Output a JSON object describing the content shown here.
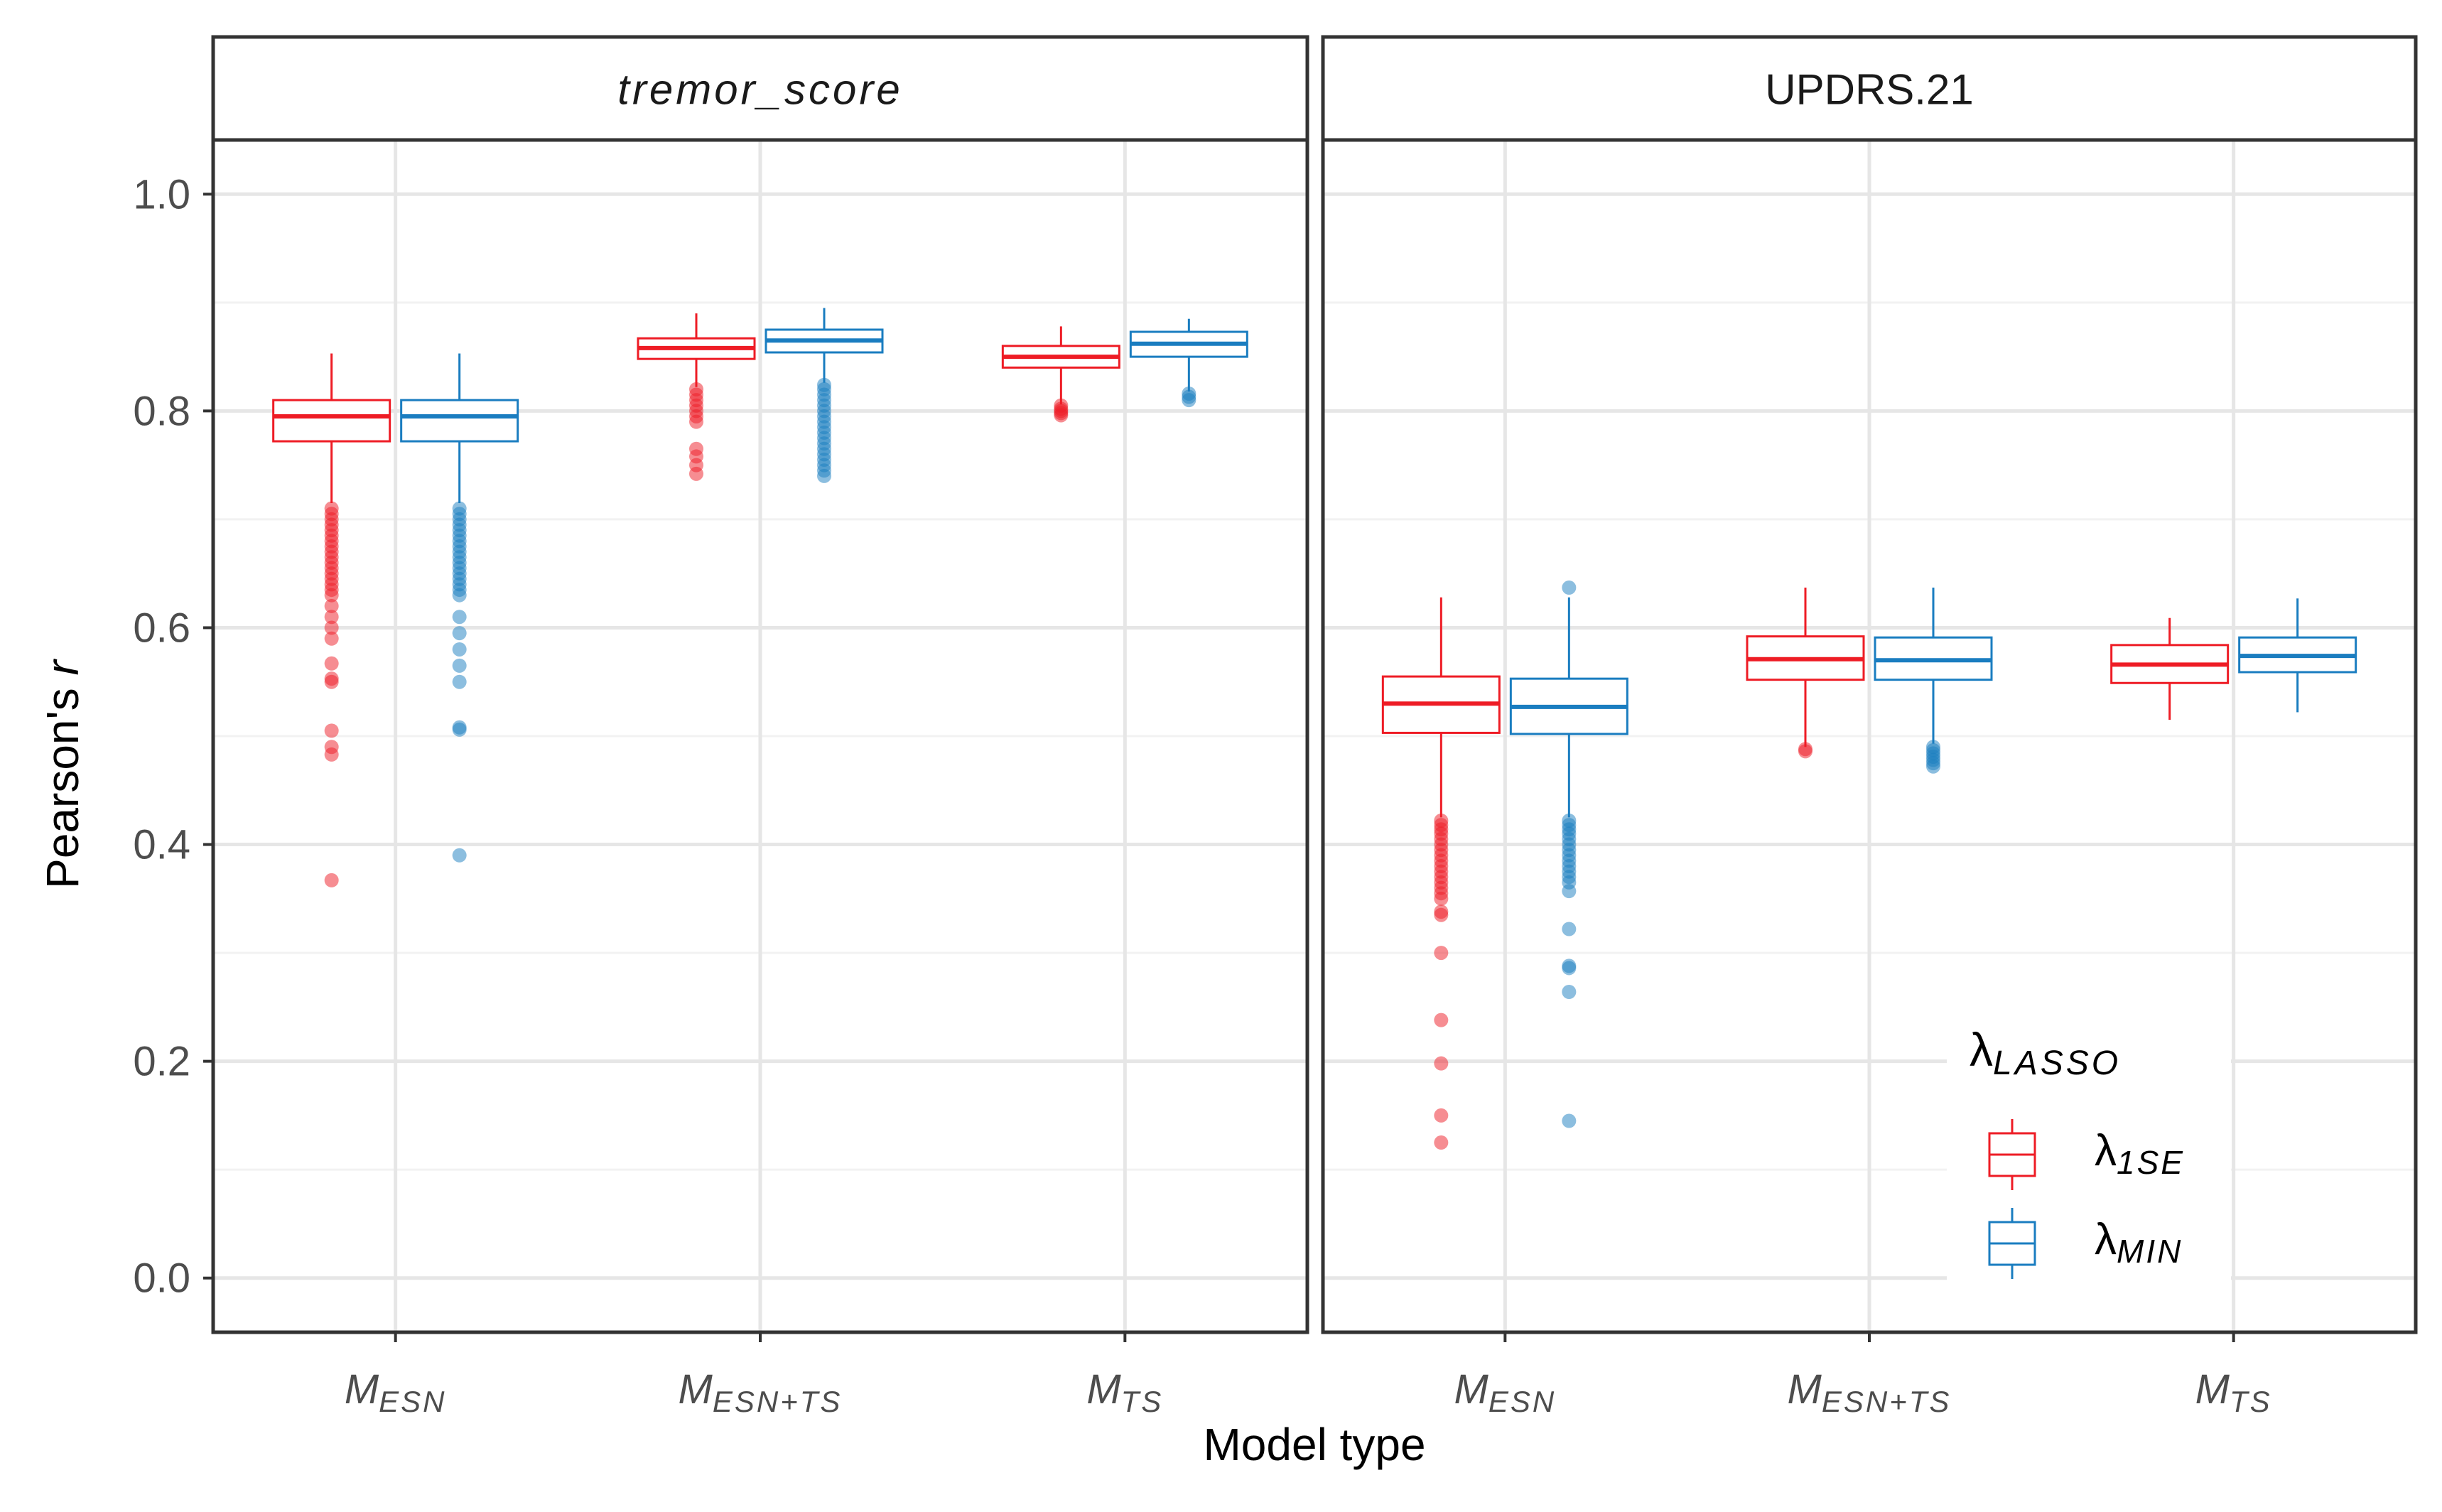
{
  "chart_data": {
    "type": "boxplot",
    "ylabel_main": "Pearson's ",
    "ylabel_italic": "r",
    "xlabel": "Model type",
    "ylim": [
      -0.05,
      1.05
    ],
    "yticks": [
      {
        "value": 0.0,
        "label": "0.0"
      },
      {
        "value": 0.2,
        "label": "0.2"
      },
      {
        "value": 0.4,
        "label": "0.4"
      },
      {
        "value": 0.6,
        "label": "0.6"
      },
      {
        "value": 0.8,
        "label": "0.8"
      },
      {
        "value": 1.0,
        "label": "1.0"
      }
    ],
    "minor_grid": [
      0.1,
      0.3,
      0.5,
      0.7,
      0.9
    ],
    "categories": [
      {
        "base": "M",
        "sub": "ESN"
      },
      {
        "base": "M",
        "sub": "ESN+TS"
      },
      {
        "base": "M",
        "sub": "TS"
      }
    ],
    "colors": {
      "lambda_1se": "#ee1c25",
      "lambda_min": "#1a7dc0"
    },
    "legend": {
      "title_base": "λ",
      "title_sub": "LASSO",
      "items": [
        {
          "key": "lambda_1se",
          "base": "λ",
          "sub": "1SE"
        },
        {
          "key": "lambda_min",
          "base": "λ",
          "sub": "MIN"
        }
      ]
    },
    "panels": [
      {
        "title": "tremor_score",
        "title_italic": true,
        "boxes": [
          {
            "category": 0,
            "series": "lambda_1se",
            "q1": 0.772,
            "median": 0.795,
            "q3": 0.81,
            "whisker_low": 0.715,
            "whisker_high": 0.853,
            "outliers": [
              0.71,
              0.705,
              0.7,
              0.695,
              0.69,
              0.685,
              0.68,
              0.675,
              0.67,
              0.665,
              0.66,
              0.655,
              0.65,
              0.645,
              0.64,
              0.635,
              0.63,
              0.62,
              0.61,
              0.6,
              0.59,
              0.567,
              0.553,
              0.55,
              0.505,
              0.49,
              0.483,
              0.367
            ]
          },
          {
            "category": 0,
            "series": "lambda_min",
            "q1": 0.772,
            "median": 0.795,
            "q3": 0.81,
            "whisker_low": 0.715,
            "whisker_high": 0.853,
            "outliers": [
              0.71,
              0.705,
              0.7,
              0.695,
              0.69,
              0.685,
              0.68,
              0.675,
              0.67,
              0.665,
              0.66,
              0.655,
              0.65,
              0.645,
              0.64,
              0.635,
              0.63,
              0.61,
              0.595,
              0.58,
              0.565,
              0.55,
              0.508,
              0.506,
              0.39
            ]
          },
          {
            "category": 1,
            "series": "lambda_1se",
            "q1": 0.848,
            "median": 0.858,
            "q3": 0.867,
            "whisker_low": 0.822,
            "whisker_high": 0.89,
            "outliers": [
              0.82,
              0.815,
              0.81,
              0.805,
              0.8,
              0.795,
              0.79,
              0.765,
              0.758,
              0.75,
              0.742
            ]
          },
          {
            "category": 1,
            "series": "lambda_min",
            "q1": 0.854,
            "median": 0.865,
            "q3": 0.875,
            "whisker_low": 0.826,
            "whisker_high": 0.895,
            "outliers": [
              0.824,
              0.82,
              0.815,
              0.81,
              0.805,
              0.8,
              0.795,
              0.79,
              0.785,
              0.78,
              0.775,
              0.77,
              0.765,
              0.76,
              0.755,
              0.75,
              0.745,
              0.74
            ]
          },
          {
            "category": 2,
            "series": "lambda_1se",
            "q1": 0.84,
            "median": 0.85,
            "q3": 0.86,
            "whisker_low": 0.806,
            "whisker_high": 0.878,
            "outliers": [
              0.805,
              0.802,
              0.8,
              0.798,
              0.796
            ]
          },
          {
            "category": 2,
            "series": "lambda_min",
            "q1": 0.85,
            "median": 0.862,
            "q3": 0.873,
            "whisker_low": 0.818,
            "whisker_high": 0.885,
            "outliers": [
              0.816,
              0.813,
              0.81
            ]
          }
        ]
      },
      {
        "title": "UPDRS.21",
        "title_italic": false,
        "boxes": [
          {
            "category": 0,
            "series": "lambda_1se",
            "q1": 0.503,
            "median": 0.53,
            "q3": 0.555,
            "whisker_low": 0.425,
            "whisker_high": 0.628,
            "outliers": [
              0.422,
              0.418,
              0.414,
              0.41,
              0.405,
              0.4,
              0.395,
              0.39,
              0.385,
              0.38,
              0.375,
              0.37,
              0.365,
              0.36,
              0.355,
              0.35,
              0.338,
              0.335,
              0.3,
              0.238,
              0.198,
              0.15,
              0.125
            ]
          },
          {
            "category": 0,
            "series": "lambda_min",
            "q1": 0.502,
            "median": 0.527,
            "q3": 0.553,
            "whisker_low": 0.425,
            "whisker_high": 0.628,
            "outliers": [
              0.637,
              0.422,
              0.418,
              0.414,
              0.41,
              0.405,
              0.4,
              0.395,
              0.39,
              0.385,
              0.38,
              0.375,
              0.37,
              0.365,
              0.357,
              0.322,
              0.288,
              0.286,
              0.264,
              0.145
            ]
          },
          {
            "category": 1,
            "series": "lambda_1se",
            "q1": 0.552,
            "median": 0.571,
            "q3": 0.592,
            "whisker_low": 0.49,
            "whisker_high": 0.637,
            "outliers": [
              0.488,
              0.486
            ]
          },
          {
            "category": 1,
            "series": "lambda_min",
            "q1": 0.552,
            "median": 0.57,
            "q3": 0.591,
            "whisker_low": 0.493,
            "whisker_high": 0.637,
            "outliers": [
              0.49,
              0.487,
              0.484,
              0.481,
              0.478,
              0.475,
              0.472
            ]
          },
          {
            "category": 2,
            "series": "lambda_1se",
            "q1": 0.549,
            "median": 0.566,
            "q3": 0.584,
            "whisker_low": 0.515,
            "whisker_high": 0.609
          },
          {
            "category": 2,
            "series": "lambda_min",
            "q1": 0.559,
            "median": 0.574,
            "q3": 0.591,
            "whisker_low": 0.522,
            "whisker_high": 0.627
          }
        ]
      }
    ]
  }
}
